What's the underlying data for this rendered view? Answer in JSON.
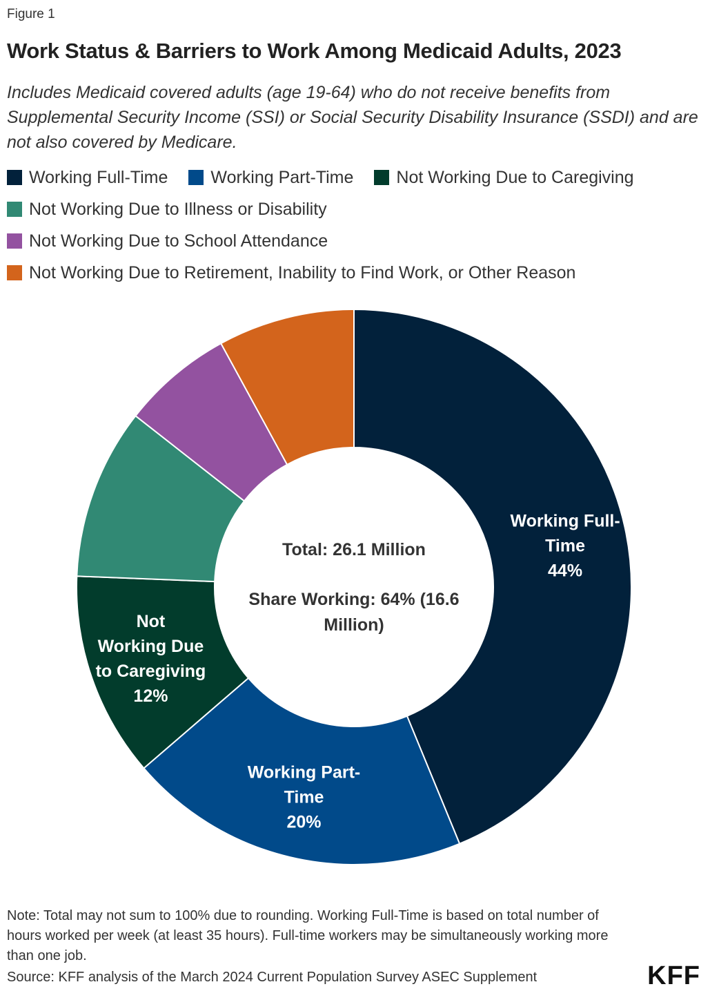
{
  "figure_label": "Figure 1",
  "title": "Work Status & Barriers to Work Among Medicaid Adults, 2023",
  "subtitle": "Includes Medicaid covered adults (age 19-64) who do not receive benefits from Supplemental Security Income (SSI) or Social Security Disability Insurance (SSDI) and are not also covered by Medicare.",
  "legend": [
    {
      "label": "Working Full-Time",
      "color": "#02213b"
    },
    {
      "label": "Working Part-Time",
      "color": "#014a8a"
    },
    {
      "label": "Not Working Due to Caregiving",
      "color": "#023c2c"
    },
    {
      "label": "Not Working Due to Illness or Disability",
      "color": "#318974"
    },
    {
      "label": "Not Working Due to School Attendance",
      "color": "#9352a0"
    },
    {
      "label": "Not Working Due to Retirement, Inability to Find Work, or Other Reason",
      "color": "#d3641c"
    }
  ],
  "chart_data": {
    "type": "pie",
    "donut": true,
    "legend_position": "top",
    "slices": [
      {
        "name": "Working Full-Time",
        "value": 44,
        "color": "#02213b",
        "label_lines": [
          "Working Full-",
          "Time"
        ],
        "value_label": "44%"
      },
      {
        "name": "Working Part-Time",
        "value": 20,
        "color": "#014a8a",
        "label_lines": [
          "Working Part-",
          "Time"
        ],
        "value_label": "20%"
      },
      {
        "name": "Not Working Due to Caregiving",
        "value": 12,
        "color": "#023c2c",
        "label_lines": [
          "Not",
          "Working Due",
          "to Caregiving"
        ],
        "value_label": "12%"
      },
      {
        "name": "Not Working Due to Illness or Disability",
        "value": 10,
        "color": "#318974"
      },
      {
        "name": "Not Working Due to School Attendance",
        "value": 6.5,
        "color": "#9352a0"
      },
      {
        "name": "Not Working Due to Retirement, Inability to Find Work, or Other Reason",
        "value": 8,
        "color": "#d3641c"
      }
    ],
    "center_text": {
      "total": "Total: 26.1 Million",
      "share_line1": "Share Working: 64% (16.6",
      "share_line2": "Million)"
    }
  },
  "note": "Note: Total may not sum to 100% due to rounding. Working Full-Time is based on total number of hours worked per week (at least 35 hours). Full-time workers may be simultaneously working more than one job.",
  "source": "Source: KFF analysis of the March 2024 Current Population Survey ASEC Supplement",
  "logo": "KFF"
}
